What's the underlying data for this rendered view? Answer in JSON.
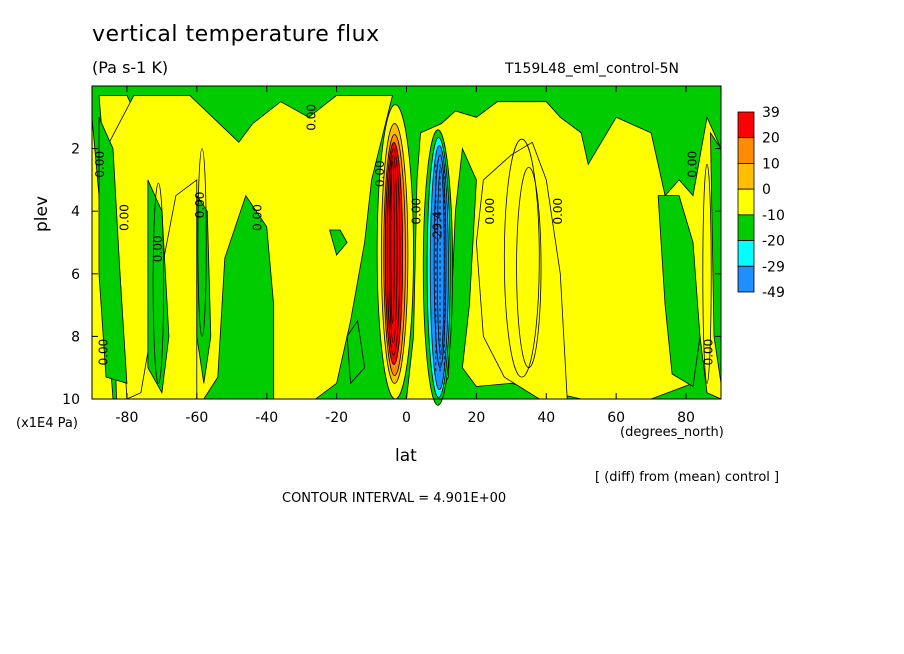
{
  "title": "vertical temperature flux",
  "units": "(Pa s-1 K)",
  "experiment": "T159L48_eml_control-5N",
  "x_axis_label": "lat",
  "x_units": "(degrees_north)",
  "y_axis_label": "plev",
  "y_units": "(x1E4 Pa)",
  "diff_note": "[ (diff) from (mean) control ]",
  "contour_interval": "CONTOUR INTERVAL = 4.901E+00",
  "chart_data": {
    "type": "heatmap",
    "title": "vertical temperature flux",
    "xlabel": "lat",
    "ylabel": "plev",
    "xlim": [
      -90,
      90
    ],
    "ylim": [
      0,
      10
    ],
    "x_ticks": [
      "-80",
      "-60",
      "-40",
      "-20",
      "0",
      "20",
      "40",
      "60",
      "80"
    ],
    "x_tick_values": [
      -80,
      -60,
      -40,
      -20,
      0,
      20,
      40,
      60,
      80
    ],
    "y_ticks": [
      "2",
      "4",
      "6",
      "8",
      "10"
    ],
    "y_tick_values": [
      2,
      4,
      6,
      8,
      10
    ],
    "y_inverted": true,
    "colorbar": {
      "labels": [
        "39",
        "20",
        "10",
        "0",
        "-10",
        "-20",
        "-29",
        "-49"
      ],
      "colors": [
        "#ff0000",
        "#ff8c00",
        "#ffbf00",
        "#ffff00",
        "#00cc00",
        "#00ffff",
        "#1e90ff",
        "#0050ff"
      ]
    },
    "contour_labels": [
      {
        "text": "0.00",
        "lat": -86.5,
        "lev": 2.5
      },
      {
        "text": "0.00",
        "lat": -79.5,
        "lev": 4.2
      },
      {
        "text": "0.00",
        "lat": -85.5,
        "lev": 8.5
      },
      {
        "text": "0.00",
        "lat": -70,
        "lev": 5.2
      },
      {
        "text": "0.00",
        "lat": -58,
        "lev": 3.8
      },
      {
        "text": "0.00",
        "lat": -41.5,
        "lev": 4.2
      },
      {
        "text": "0.00",
        "lat": -26,
        "lev": 1.0
      },
      {
        "text": "0.00",
        "lat": -6.5,
        "lev": 2.8
      },
      {
        "text": "0.00",
        "lat": 4,
        "lev": 4.0
      },
      {
        "text": "-29.4",
        "lat": 10,
        "lev": 4.5
      },
      {
        "text": "0.00",
        "lat": 25,
        "lev": 4.0
      },
      {
        "text": "0.00",
        "lat": 44.5,
        "lev": 4.0
      },
      {
        "text": "0.00",
        "lat": 83,
        "lev": 2.5
      },
      {
        "text": "0.00",
        "lat": 87.5,
        "lev": 8.5
      }
    ]
  }
}
